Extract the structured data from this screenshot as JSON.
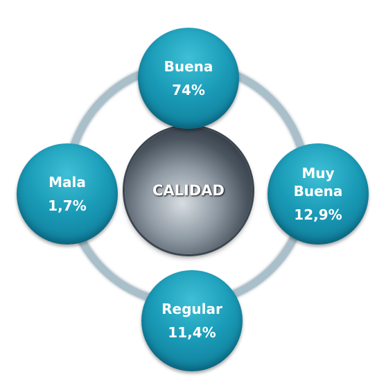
{
  "center": {
    "label": "CALIDAD"
  },
  "nodes": [
    {
      "label": "Buena",
      "value": "74%"
    },
    {
      "label": "Muy Buena",
      "value": "12,9%"
    },
    {
      "label": "Regular",
      "value": "11,4%"
    },
    {
      "label": "Mala",
      "value": "1,7%"
    }
  ]
}
